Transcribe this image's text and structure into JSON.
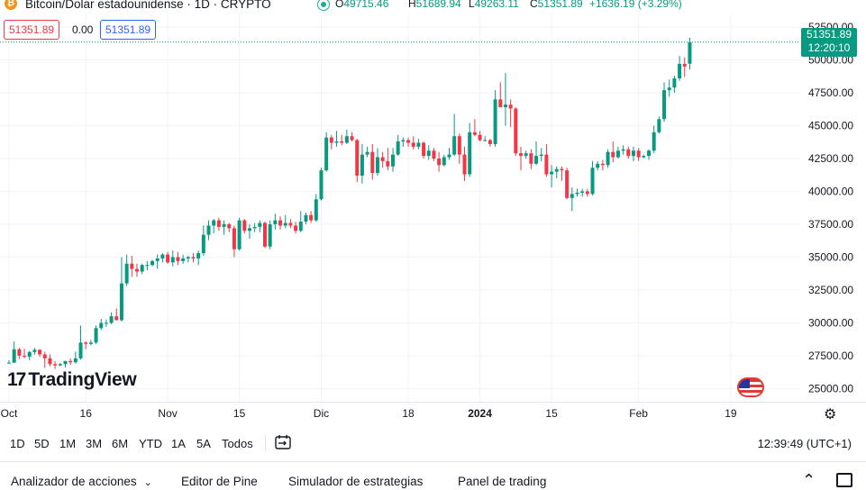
{
  "header": {
    "symbol_title": "Bitcoin/Dolar estadounidense · 1D · CRYPTO",
    "ohlc": {
      "o_label": "O",
      "o": "49715.46",
      "h_label": "H",
      "h": "51689.94",
      "l_label": "L",
      "l": "49263.11",
      "c_label": "C",
      "c": "51351.89",
      "change": "+1636.19 (+3.29%)"
    },
    "sell_price": "51351.89",
    "spread": "0.00",
    "buy_price": "51351.89",
    "last_price": "51351.89",
    "countdown": "12:20:10"
  },
  "brand": "TradingView",
  "colors": {
    "up": "#089981",
    "down": "#f23645",
    "grid": "#f0f3fa",
    "axis_text": "#131722"
  },
  "chart_data": {
    "type": "candlestick",
    "y_ticks": [
      "52500.00",
      "50000.00",
      "47500.00",
      "45000.00",
      "42500.00",
      "40000.00",
      "37500.00",
      "35000.00",
      "32500.00",
      "30000.00",
      "27500.00",
      "25000.00"
    ],
    "x_ticks": [
      "Oct",
      "16",
      "Nov",
      "15",
      "Dic",
      "18",
      "2024",
      "15",
      "Feb",
      "19"
    ],
    "ylim": [
      24000,
      53600
    ],
    "start_date": "2023-10-01",
    "candles": [
      [
        26967,
        27150,
        26930,
        26970
      ],
      [
        26970,
        28580,
        26960,
        27990
      ],
      [
        27990,
        28100,
        27240,
        27500
      ],
      [
        27500,
        28020,
        27300,
        27430
      ],
      [
        27430,
        27870,
        27150,
        27780
      ],
      [
        27780,
        28100,
        27580,
        27950
      ],
      [
        27950,
        28000,
        27400,
        27600
      ],
      [
        27600,
        27800,
        26560,
        27300
      ],
      [
        27300,
        27600,
        26700,
        26860
      ],
      [
        26860,
        27100,
        26500,
        26760
      ],
      [
        26760,
        26950,
        26700,
        26860
      ],
      [
        26860,
        27100,
        26600,
        27100
      ],
      [
        27100,
        27300,
        26800,
        27000
      ],
      [
        27000,
        27800,
        26900,
        27300
      ],
      [
        27300,
        29800,
        27200,
        28500
      ],
      [
        28500,
        28600,
        28000,
        28400
      ],
      [
        28400,
        28700,
        28300,
        28500
      ],
      [
        28500,
        29800,
        28400,
        29600
      ],
      [
        29600,
        30300,
        29450,
        29990
      ],
      [
        29990,
        30250,
        29700,
        30000
      ],
      [
        30000,
        30800,
        29900,
        30500
      ],
      [
        30500,
        31100,
        30300,
        30200
      ],
      [
        30200,
        35000,
        30100,
        33000
      ],
      [
        33000,
        35200,
        32800,
        34500
      ],
      [
        34500,
        35100,
        33500,
        34100
      ],
      [
        34100,
        34500,
        33500,
        33900
      ],
      [
        33900,
        34500,
        33700,
        34400
      ],
      [
        34400,
        34700,
        34000,
        34400
      ],
      [
        34400,
        34800,
        34300,
        34700
      ],
      [
        34700,
        35200,
        34100,
        34900
      ],
      [
        34900,
        35300,
        34600,
        35200
      ],
      [
        35200,
        35400,
        34500,
        34600
      ],
      [
        34600,
        35500,
        34300,
        35000
      ],
      [
        35000,
        35400,
        34400,
        34700
      ],
      [
        34700,
        35200,
        34500,
        34900
      ],
      [
        34900,
        35100,
        34600,
        35000
      ],
      [
        35000,
        35300,
        34600,
        34900
      ],
      [
        34900,
        35500,
        34400,
        35300
      ],
      [
        35300,
        37400,
        35100,
        36700
      ],
      [
        36700,
        37800,
        36300,
        37400
      ],
      [
        37400,
        37900,
        36800,
        37800
      ],
      [
        37800,
        38000,
        37000,
        37300
      ],
      [
        37300,
        37800,
        36700,
        37500
      ],
      [
        37500,
        37600,
        36900,
        37200
      ],
      [
        37200,
        37400,
        35000,
        35600
      ],
      [
        35600,
        38000,
        35500,
        37800
      ],
      [
        37800,
        37900,
        36800,
        37000
      ],
      [
        37000,
        37500,
        36400,
        37200
      ],
      [
        37200,
        37600,
        36900,
        37300
      ],
      [
        37300,
        37800,
        36900,
        37600
      ],
      [
        37600,
        37700,
        35700,
        35800
      ],
      [
        35800,
        37800,
        35600,
        37500
      ],
      [
        37500,
        38300,
        37100,
        37800
      ],
      [
        37800,
        38100,
        37100,
        37400
      ],
      [
        37400,
        38200,
        37200,
        37600
      ],
      [
        37600,
        37900,
        37200,
        37400
      ],
      [
        37400,
        37700,
        36800,
        37000
      ],
      [
        37000,
        38500,
        36900,
        37700
      ],
      [
        37700,
        38400,
        37500,
        38200
      ],
      [
        38200,
        38500,
        37600,
        37800
      ],
      [
        37800,
        39800,
        37700,
        39400
      ],
      [
        39400,
        41800,
        39300,
        41600
      ],
      [
        41600,
        44500,
        41500,
        44100
      ],
      [
        44100,
        44300,
        43200,
        43700
      ],
      [
        43700,
        44600,
        43400,
        43800
      ],
      [
        43800,
        44300,
        43500,
        43700
      ],
      [
        43700,
        44700,
        43600,
        44200
      ],
      [
        44200,
        44500,
        43800,
        43900
      ],
      [
        43900,
        44000,
        40700,
        41200
      ],
      [
        41200,
        43600,
        40600,
        42800
      ],
      [
        42800,
        43400,
        42600,
        43000
      ],
      [
        43000,
        43600,
        40900,
        41400
      ],
      [
        41400,
        43300,
        41200,
        42600
      ],
      [
        42600,
        43000,
        41800,
        42300
      ],
      [
        42300,
        43300,
        41600,
        41900
      ],
      [
        41900,
        43300,
        41500,
        42800
      ],
      [
        42800,
        44300,
        42700,
        43800
      ],
      [
        43800,
        44100,
        43400,
        43900
      ],
      [
        43900,
        44100,
        43400,
        43700
      ],
      [
        43700,
        44200,
        43200,
        43400
      ],
      [
        43400,
        44000,
        43200,
        43700
      ],
      [
        43700,
        43800,
        42500,
        42700
      ],
      [
        42700,
        43500,
        42400,
        43100
      ],
      [
        43100,
        43300,
        42300,
        42500
      ],
      [
        42500,
        43000,
        41500,
        42000
      ],
      [
        42000,
        42800,
        41900,
        42600
      ],
      [
        42600,
        43300,
        42400,
        42800
      ],
      [
        42800,
        45900,
        42700,
        44200
      ],
      [
        44200,
        44400,
        42100,
        42800
      ],
      [
        42800,
        43400,
        40800,
        41300
      ],
      [
        41300,
        45200,
        41100,
        44500
      ],
      [
        44500,
        45500,
        44200,
        44300
      ],
      [
        44300,
        44600,
        43800,
        43900
      ],
      [
        43900,
        44200,
        43800,
        43900
      ],
      [
        43900,
        44000,
        43400,
        43600
      ],
      [
        43600,
        47700,
        43400,
        47000
      ],
      [
        47000,
        48300,
        46400,
        46400
      ],
      [
        46400,
        49000,
        45000,
        46600
      ],
      [
        46600,
        47000,
        44900,
        46300
      ],
      [
        46300,
        46400,
        42700,
        42900
      ],
      [
        42900,
        43400,
        41600,
        42700
      ],
      [
        42700,
        43100,
        42500,
        42900
      ],
      [
        42900,
        43200,
        41700,
        42100
      ],
      [
        42100,
        43800,
        42000,
        42700
      ],
      [
        42700,
        43300,
        42300,
        42800
      ],
      [
        42800,
        43600,
        41100,
        41300
      ],
      [
        41300,
        42000,
        40300,
        41500
      ],
      [
        41500,
        41900,
        41000,
        41700
      ],
      [
        41700,
        41900,
        40800,
        41600
      ],
      [
        41600,
        41800,
        39400,
        39500
      ],
      [
        39500,
        40300,
        38500,
        39800
      ],
      [
        39800,
        40200,
        39600,
        39900
      ],
      [
        39900,
        40200,
        39600,
        40000
      ],
      [
        40000,
        40200,
        39600,
        39800
      ],
      [
        39800,
        42300,
        39700,
        41800
      ],
      [
        41800,
        42300,
        41600,
        42100
      ],
      [
        42100,
        42400,
        41600,
        42000
      ],
      [
        42000,
        43200,
        41800,
        43000
      ],
      [
        43000,
        43800,
        42200,
        42600
      ],
      [
        42600,
        43400,
        42500,
        43100
      ],
      [
        43100,
        43500,
        42800,
        43200
      ],
      [
        43200,
        43400,
        42500,
        42700
      ],
      [
        42700,
        43400,
        42300,
        43100
      ],
      [
        43100,
        43300,
        42300,
        42600
      ],
      [
        42600,
        42800,
        42500,
        42700
      ],
      [
        42700,
        43200,
        42400,
        43100
      ],
      [
        43100,
        45000,
        42900,
        44500
      ],
      [
        44500,
        45700,
        44400,
        45500
      ],
      [
        45500,
        48300,
        45300,
        47700
      ],
      [
        47700,
        48500,
        47200,
        47900
      ],
      [
        47900,
        48800,
        47500,
        48600
      ],
      [
        48600,
        50300,
        48400,
        49700
      ],
      [
        49700,
        50200,
        48700,
        49500
      ],
      [
        49715,
        51690,
        49263,
        51352
      ]
    ]
  },
  "toolbar": {
    "timeframes": [
      "1D",
      "5D",
      "1M",
      "3M",
      "6M",
      "YTD",
      "1A",
      "5A",
      "Todos"
    ],
    "clock": "12:39:49 (UTC+1)"
  },
  "bottom_tabs": [
    "Analizador de acciones",
    "Editor de Pine",
    "Simulador de estrategias",
    "Panel de trading"
  ]
}
